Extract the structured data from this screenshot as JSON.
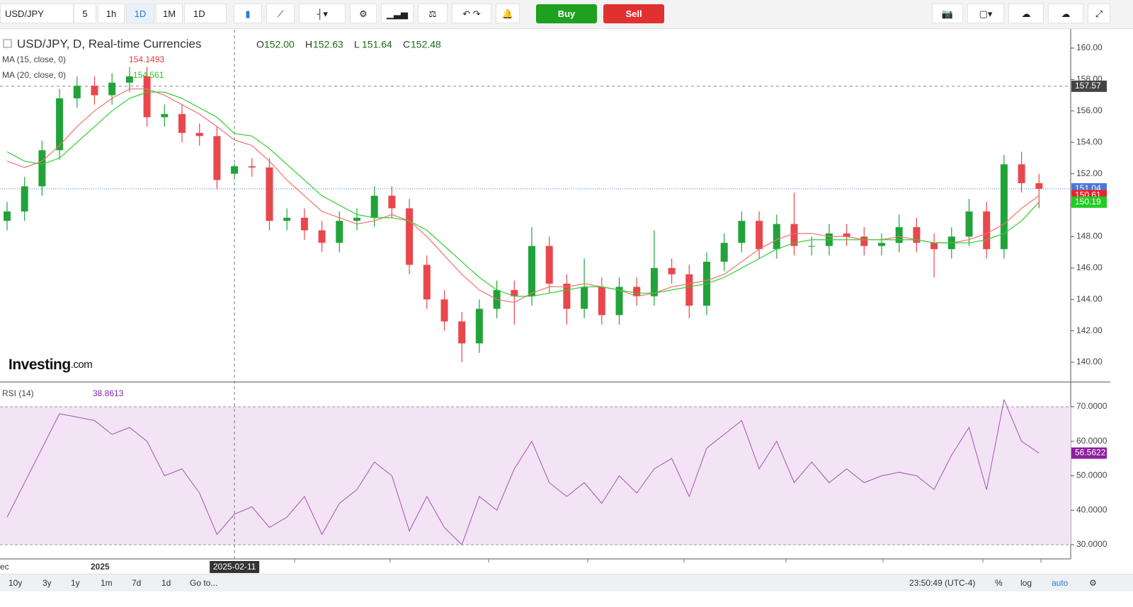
{
  "toolbar": {
    "symbol": "USD/JPY",
    "intervals": [
      "5",
      "1h",
      "1D",
      "1M"
    ],
    "range": "1D",
    "buy": "Buy",
    "sell": "Sell"
  },
  "chart_data": [
    {
      "type": "candlestick",
      "title": "USD/JPY, D, Real-time Currencies",
      "ohlc_header": [
        {
          "key": "O",
          "price": {
            "value": 152,
            "label": "152.00"
          }
        },
        {
          "key": "H",
          "price": {
            "value": 152.63,
            "label": "152.63"
          }
        },
        {
          "key": "L",
          "price": {
            "value": 151.64,
            "label": "151.64"
          }
        },
        {
          "key": "C",
          "price": {
            "value": 152.48,
            "label": "152.48"
          }
        }
      ],
      "open": [
        149.0,
        149.6,
        151.2,
        153.5,
        156.8,
        157.6,
        157.0,
        157.8,
        158.2,
        155.6,
        155.8,
        154.6,
        154.4,
        152.0,
        152.48,
        152.4,
        149.0,
        149.2,
        148.4,
        147.6,
        149.0,
        149.2,
        150.6,
        149.8,
        146.2,
        144.0,
        142.6,
        141.2,
        143.4,
        144.6,
        144.2,
        147.4,
        145.0,
        143.4,
        144.8,
        143.0,
        144.8,
        144.2,
        146.0,
        145.6,
        143.6,
        146.4,
        147.6,
        149.0,
        147.2,
        148.8,
        147.4,
        147.4,
        148.2,
        148.0,
        147.4,
        147.6,
        148.6,
        147.6,
        147.2,
        148.0,
        149.6,
        147.2,
        152.6,
        151.4
      ],
      "high": [
        150.2,
        151.8,
        154.1,
        157.4,
        158.2,
        158.2,
        158.4,
        158.8,
        158.8,
        156.4,
        156.4,
        155.2,
        155.0,
        152.63,
        153.0,
        153.0,
        149.8,
        149.8,
        149.0,
        149.6,
        149.8,
        151.2,
        151.2,
        150.4,
        146.8,
        144.6,
        143.2,
        144.0,
        145.2,
        145.2,
        148.6,
        148.0,
        145.6,
        146.6,
        145.4,
        145.4,
        145.4,
        148.4,
        146.6,
        146.2,
        147.0,
        148.2,
        149.6,
        149.6,
        149.4,
        150.8,
        148.0,
        148.8,
        148.8,
        148.6,
        148.2,
        149.4,
        149.2,
        148.2,
        148.6,
        150.4,
        150.2,
        153.2,
        153.4,
        152.0
      ],
      "low": [
        148.4,
        149.0,
        150.6,
        152.9,
        156.2,
        156.4,
        156.4,
        157.2,
        155.0,
        155.0,
        154.0,
        153.8,
        151.0,
        151.64,
        151.8,
        148.4,
        148.4,
        147.8,
        147.0,
        147.0,
        148.4,
        148.6,
        149.2,
        145.6,
        143.4,
        142.0,
        140.0,
        140.6,
        142.8,
        142.4,
        143.6,
        144.4,
        142.4,
        142.8,
        142.4,
        142.4,
        143.6,
        143.6,
        145.0,
        142.8,
        143.0,
        145.8,
        147.0,
        146.6,
        146.6,
        146.8,
        146.8,
        146.8,
        147.4,
        146.8,
        146.8,
        147.0,
        147.0,
        145.4,
        146.6,
        147.4,
        146.6,
        146.6,
        150.8,
        149.8
      ],
      "close": [
        149.6,
        151.2,
        153.5,
        156.8,
        157.6,
        157.0,
        157.8,
        158.2,
        155.6,
        155.8,
        154.6,
        154.4,
        151.6,
        152.48,
        152.4,
        149.0,
        149.2,
        148.4,
        147.6,
        149.0,
        149.2,
        150.6,
        149.8,
        146.2,
        144.0,
        142.6,
        141.2,
        143.4,
        144.6,
        144.2,
        147.4,
        145.0,
        143.4,
        144.8,
        143.0,
        144.8,
        144.2,
        146.0,
        145.6,
        143.6,
        146.4,
        147.6,
        149.0,
        147.2,
        148.8,
        147.4,
        147.4,
        148.2,
        148.0,
        147.4,
        147.6,
        148.6,
        147.6,
        147.2,
        148.0,
        149.6,
        147.2,
        152.6,
        151.4,
        151.04
      ],
      "up_color": "#22a33a",
      "down_color": "#e8474c",
      "last_color": "#4a78d8",
      "series": [
        {
          "name": "MA (15, close, 0)",
          "color": "#f07070",
          "values": [
            152.8,
            152.4,
            152.8,
            153.8,
            155.0,
            156.0,
            156.8,
            157.4,
            157.4,
            157.0,
            156.4,
            155.8,
            155.0,
            154.1493,
            153.8,
            152.8,
            151.6,
            150.6,
            149.6,
            149.2,
            148.8,
            149.0,
            149.4,
            149.0,
            148.0,
            146.8,
            145.6,
            144.6,
            144.0,
            143.8,
            144.4,
            144.8,
            144.8,
            145.0,
            144.8,
            144.6,
            144.2,
            144.4,
            144.8,
            145.0,
            145.2,
            145.6,
            146.4,
            147.2,
            147.8,
            148.2,
            148.2,
            148.0,
            148.0,
            147.8,
            147.8,
            148.0,
            147.8,
            147.6,
            147.6,
            147.8,
            148.2,
            148.8,
            149.8,
            150.61
          ]
        },
        {
          "name": "MA (20, close, 0)",
          "color": "#33cc33",
          "values": [
            153.4,
            152.8,
            152.6,
            153.0,
            154.0,
            155.0,
            156.0,
            156.8,
            157.2,
            157.2,
            156.8,
            156.2,
            155.6,
            154.561,
            154.4,
            153.6,
            152.6,
            151.6,
            150.6,
            150.0,
            149.4,
            149.2,
            149.2,
            149.0,
            148.4,
            147.4,
            146.4,
            145.4,
            144.6,
            144.2,
            144.2,
            144.4,
            144.6,
            144.8,
            144.8,
            144.6,
            144.4,
            144.4,
            144.6,
            144.8,
            145.0,
            145.4,
            146.0,
            146.6,
            147.2,
            147.6,
            147.8,
            147.8,
            147.8,
            147.8,
            147.8,
            147.8,
            147.8,
            147.6,
            147.6,
            147.6,
            147.8,
            148.2,
            149.0,
            150.19
          ]
        }
      ],
      "ylim": [
        138.74,
        161.17
      ],
      "yticks": [
        {
          "value": 140,
          "label": "140.00"
        },
        {
          "value": 142,
          "label": "142.00"
        },
        {
          "value": 144,
          "label": "144.00"
        },
        {
          "value": 146,
          "label": "146.00"
        },
        {
          "value": 148,
          "label": "148.00"
        },
        {
          "value": 150,
          "label": "150.00"
        },
        {
          "value": 152,
          "label": "152.00"
        },
        {
          "value": 154,
          "label": "154.00"
        },
        {
          "value": 156,
          "label": "156.00"
        },
        {
          "value": 158,
          "label": "158.00"
        },
        {
          "value": 160,
          "label": "160.00"
        }
      ],
      "crosshair": {
        "price": 157.57,
        "date": "2025-02-11"
      },
      "x_labels": [
        "ec",
        "2025"
      ],
      "watermark": {
        "brand": "Investing",
        "suffix": ".com"
      }
    },
    {
      "type": "line",
      "name": "RSI (14)",
      "color": "#a452b5",
      "legend_value": 38.8613,
      "values": [
        38,
        48,
        58,
        68,
        67,
        66,
        62,
        64,
        60,
        50,
        52,
        45,
        33,
        38.8613,
        41,
        35,
        38,
        44,
        33,
        42,
        46,
        54,
        50,
        34,
        44,
        35,
        30,
        44,
        40,
        52,
        60,
        48,
        44,
        48,
        42,
        50,
        45,
        52,
        55,
        44,
        58,
        62,
        66,
        52,
        60,
        48,
        54,
        48,
        52,
        48,
        50,
        51,
        50,
        46,
        56,
        64,
        46,
        72,
        60,
        56.5622
      ],
      "ylim": [
        25.9,
        76.97
      ],
      "yticks": [
        {
          "value": 30,
          "label": "30.0000"
        },
        {
          "value": 40,
          "label": "40.0000"
        },
        {
          "value": 50,
          "label": "50.0000"
        },
        {
          "value": 60,
          "label": "60.0000"
        },
        {
          "value": 70,
          "label": "70.0000"
        }
      ],
      "band": [
        30,
        70
      ],
      "band_color": "#f3e4f5"
    }
  ],
  "bottom_bar": {
    "ranges": [
      "10y",
      "3y",
      "1y",
      "1m",
      "7d",
      "1d"
    ],
    "goto": "Go to...",
    "time": "23:50:49 (UTC-4)",
    "options": [
      "%",
      "log",
      "auto"
    ]
  }
}
